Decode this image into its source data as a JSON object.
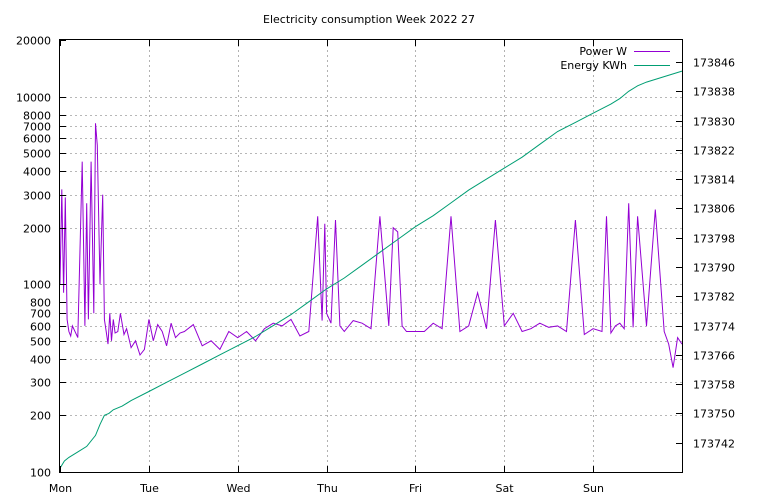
{
  "chart_data": {
    "type": "line",
    "title": "Electricity consumption Week 2022 27",
    "xlabel": "",
    "ylabel": "",
    "y2label": "",
    "x_tick_labels": [
      "Mon",
      "Tue",
      "Wed",
      "Thu",
      "Fri",
      "Sat",
      "Sun"
    ],
    "x_range_days": [
      0,
      7
    ],
    "y_scale": "log",
    "y_range": [
      100,
      20000
    ],
    "y_tick_labels": [
      "100",
      "200",
      "300",
      "400",
      "500",
      "600",
      "700",
      "800",
      "1000",
      "2000",
      "3000",
      "4000",
      "5000",
      "6000",
      "7000",
      "8000",
      "10000",
      "20000"
    ],
    "y2_range": [
      173734,
      173852
    ],
    "y2_tick_labels": [
      "173742",
      "173750",
      "173758",
      "173766",
      "173774",
      "173782",
      "173790",
      "173798",
      "173806",
      "173814",
      "173822",
      "173830",
      "173838",
      "173846"
    ],
    "grid": true,
    "legend_position": "top-right",
    "series": [
      {
        "name": "Power W",
        "axis": "left",
        "color": "#9400d3",
        "x": [
          0.0,
          0.02,
          0.04,
          0.06,
          0.08,
          0.1,
          0.12,
          0.14,
          0.2,
          0.25,
          0.28,
          0.3,
          0.32,
          0.35,
          0.38,
          0.4,
          0.42,
          0.45,
          0.48,
          0.5,
          0.52,
          0.54,
          0.56,
          0.58,
          0.6,
          0.62,
          0.65,
          0.68,
          0.72,
          0.75,
          0.8,
          0.85,
          0.9,
          0.95,
          1.0,
          1.05,
          1.1,
          1.15,
          1.2,
          1.25,
          1.3,
          1.35,
          1.4,
          1.5,
          1.6,
          1.7,
          1.8,
          1.9,
          2.0,
          2.1,
          2.2,
          2.3,
          2.4,
          2.5,
          2.6,
          2.7,
          2.8,
          2.9,
          2.95,
          2.98,
          3.0,
          3.05,
          3.1,
          3.15,
          3.2,
          3.3,
          3.4,
          3.5,
          3.6,
          3.7,
          3.75,
          3.8,
          3.85,
          3.9,
          4.0,
          4.1,
          4.2,
          4.3,
          4.4,
          4.5,
          4.6,
          4.7,
          4.8,
          4.9,
          5.0,
          5.1,
          5.2,
          5.3,
          5.4,
          5.5,
          5.6,
          5.7,
          5.8,
          5.9,
          6.0,
          6.1,
          6.15,
          6.2,
          6.25,
          6.3,
          6.35,
          6.4,
          6.45,
          6.5,
          6.6,
          6.7,
          6.8,
          6.85,
          6.9,
          6.95,
          7.0
        ],
        "values": [
          1000,
          3200,
          900,
          2900,
          650,
          560,
          530,
          600,
          520,
          4500,
          600,
          2700,
          650,
          4500,
          700,
          7200,
          5500,
          1000,
          3000,
          650,
          560,
          480,
          700,
          500,
          650,
          550,
          560,
          700,
          540,
          580,
          460,
          500,
          420,
          450,
          650,
          500,
          610,
          560,
          470,
          620,
          520,
          550,
          560,
          610,
          470,
          500,
          450,
          560,
          520,
          560,
          500,
          580,
          620,
          600,
          650,
          530,
          560,
          2300,
          640,
          2100,
          700,
          620,
          2200,
          600,
          560,
          640,
          620,
          580,
          2300,
          600,
          2000,
          1900,
          600,
          560,
          560,
          560,
          620,
          580,
          2300,
          560,
          600,
          900,
          580,
          2200,
          600,
          700,
          560,
          580,
          620,
          590,
          600,
          560,
          2200,
          540,
          580,
          560,
          2300,
          550,
          600,
          620,
          580,
          2700,
          590,
          2300,
          600,
          2500,
          560,
          480,
          360,
          520,
          480
        ],
        "line_width": 1
      },
      {
        "name": "Energy KWh",
        "axis": "right",
        "color": "#009e73",
        "x": [
          0.0,
          0.05,
          0.1,
          0.2,
          0.3,
          0.4,
          0.45,
          0.5,
          0.55,
          0.6,
          0.7,
          0.8,
          1.0,
          1.2,
          1.4,
          1.6,
          1.8,
          2.0,
          2.2,
          2.4,
          2.6,
          2.8,
          3.0,
          3.2,
          3.4,
          3.6,
          3.8,
          4.0,
          4.2,
          4.4,
          4.6,
          4.8,
          5.0,
          5.2,
          5.4,
          5.6,
          5.8,
          6.0,
          6.2,
          6.3,
          6.4,
          6.5,
          6.6,
          6.8,
          7.0
        ],
        "values": [
          173735,
          173737,
          173738,
          173739.5,
          173741,
          173744,
          173747,
          173749.5,
          173750,
          173751,
          173752,
          173753.5,
          173756,
          173758.5,
          173761,
          173763.5,
          173766,
          173768.5,
          173771,
          173774,
          173777,
          173780.5,
          173784,
          173787,
          173790.5,
          173794,
          173797.5,
          173801,
          173804,
          173807.5,
          173811,
          173814,
          173817,
          173820,
          173823.5,
          173827,
          173829.5,
          173832,
          173834.5,
          173836,
          173838,
          173839.5,
          173840.5,
          173842,
          173843.5
        ],
        "line_width": 1
      }
    ]
  }
}
